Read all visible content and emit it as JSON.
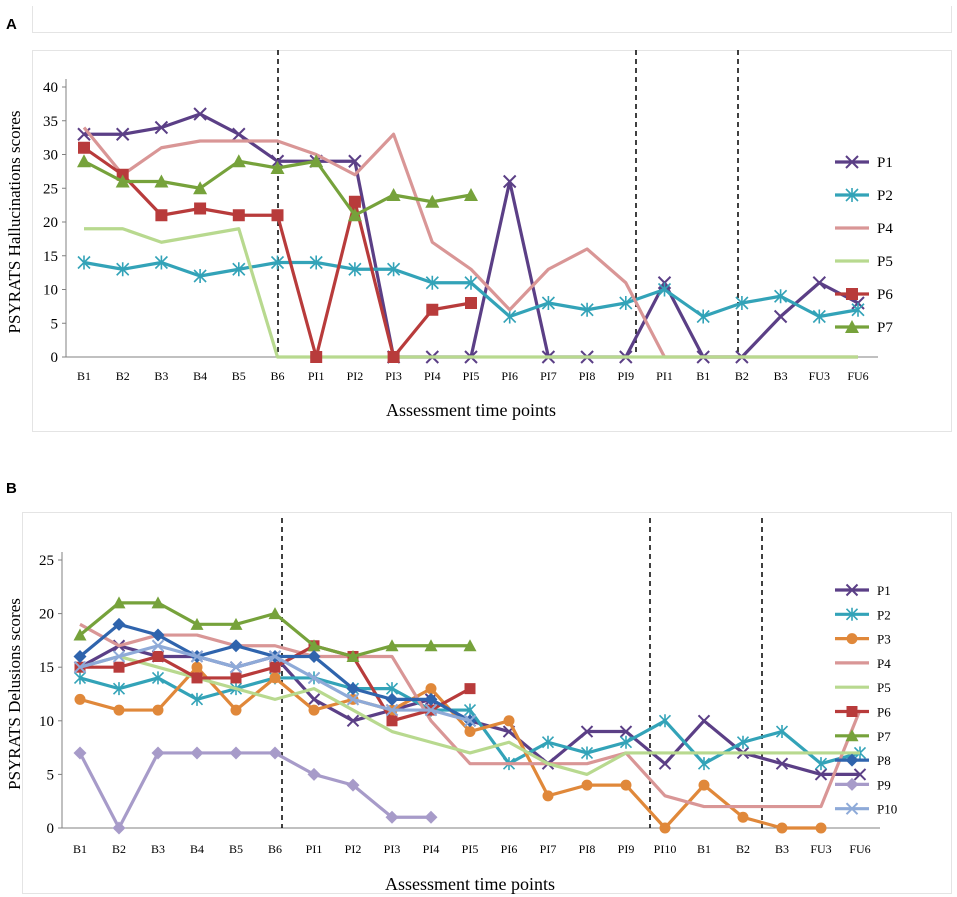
{
  "chart_data": [
    {
      "type": "line",
      "panel": "A",
      "ylabel": "PSYRATS Hallucinations scores",
      "xlabel": "Assessment time points",
      "ylim": [
        0,
        40
      ],
      "yticks": [
        "0",
        "5",
        "10",
        "15",
        "20",
        "25",
        "30",
        "35",
        "40"
      ],
      "categories": [
        "B1",
        "B2",
        "B3",
        "B4",
        "B5",
        "B6",
        "PI1",
        "PI2",
        "PI3",
        "PI4",
        "PI5",
        "PI6",
        "PI7",
        "PI8",
        "PI9",
        "PI1",
        "B1",
        "B2",
        "B3",
        "FU3",
        "FU6"
      ],
      "phase_dividers_after": [
        "B6",
        "PI1",
        "B3"
      ],
      "legend_position": "right",
      "series": [
        {
          "name": "P1",
          "color": "#5b3f86",
          "marker": "x",
          "values": [
            33,
            33,
            34,
            36,
            33,
            29,
            29,
            29,
            0,
            0,
            0,
            26,
            0,
            0,
            0,
            11,
            0,
            0,
            6,
            11,
            8
          ]
        },
        {
          "name": "P2",
          "color": "#33a3b8",
          "marker": "asterisk",
          "values": [
            14,
            13,
            14,
            12,
            13,
            14,
            14,
            13,
            13,
            11,
            11,
            6,
            8,
            7,
            8,
            10,
            6,
            8,
            9,
            6,
            7
          ]
        },
        {
          "name": "P4",
          "color": "#d99696",
          "marker": "none",
          "values": [
            34,
            27,
            31,
            32,
            32,
            32,
            30,
            27,
            33,
            17,
            13,
            7,
            13,
            16,
            11,
            0,
            0,
            0,
            0,
            0,
            0
          ]
        },
        {
          "name": "P5",
          "color": "#b8d98f",
          "marker": "none",
          "values": [
            19,
            19,
            17,
            18,
            19,
            0,
            0,
            0,
            0,
            0,
            0,
            0,
            0,
            0,
            0,
            0,
            0,
            0,
            0,
            0,
            0
          ]
        },
        {
          "name": "P6",
          "color": "#b83b3b",
          "marker": "square",
          "values": [
            31,
            27,
            21,
            22,
            21,
            21,
            0,
            23,
            0,
            7,
            8,
            null,
            null,
            null,
            null,
            null,
            null,
            null,
            null,
            null,
            null
          ]
        },
        {
          "name": "P7",
          "color": "#76a23b",
          "marker": "triangle",
          "values": [
            29,
            26,
            26,
            25,
            29,
            28,
            29,
            21,
            24,
            23,
            24,
            null,
            null,
            null,
            null,
            null,
            null,
            null,
            null,
            null,
            null
          ]
        }
      ]
    },
    {
      "type": "line",
      "panel": "B",
      "ylabel": "PSYRATS Delusions scores",
      "xlabel": "Assessment time points",
      "ylim": [
        0,
        25
      ],
      "yticks": [
        "0",
        "5",
        "10",
        "15",
        "20",
        "25"
      ],
      "categories": [
        "B1",
        "B2",
        "B3",
        "B4",
        "B5",
        "B6",
        "PI1",
        "PI2",
        "PI3",
        "PI4",
        "PI5",
        "PI6",
        "PI7",
        "PI8",
        "PI9",
        "PI10",
        "B1",
        "B2",
        "B3",
        "FU3",
        "FU6"
      ],
      "phase_dividers_after": [
        "B6",
        "PI10",
        "B3"
      ],
      "legend_position": "right",
      "series": [
        {
          "name": "P1",
          "color": "#5b3f86",
          "marker": "x",
          "values": [
            15,
            17,
            16,
            16,
            15,
            16,
            12,
            10,
            11,
            12,
            10,
            9,
            6,
            9,
            9,
            6,
            10,
            7,
            6,
            5,
            5
          ]
        },
        {
          "name": "P2",
          "color": "#33a3b8",
          "marker": "asterisk",
          "values": [
            14,
            13,
            14,
            12,
            13,
            14,
            14,
            13,
            13,
            11,
            11,
            6,
            8,
            7,
            8,
            10,
            6,
            8,
            9,
            6,
            7
          ]
        },
        {
          "name": "P3",
          "color": "#e0883a",
          "marker": "circle",
          "values": [
            12,
            11,
            11,
            15,
            11,
            14,
            11,
            12,
            11,
            13,
            9,
            10,
            3,
            4,
            4,
            0,
            4,
            1,
            0,
            0,
            null
          ]
        },
        {
          "name": "P4",
          "color": "#d99696",
          "marker": "none",
          "values": [
            19,
            17,
            18,
            18,
            17,
            17,
            16,
            16,
            16,
            10,
            6,
            6,
            6,
            6,
            7,
            3,
            2,
            2,
            2,
            2,
            11
          ]
        },
        {
          "name": "P5",
          "color": "#b8d98f",
          "marker": "none",
          "values": [
            15,
            16,
            15,
            14,
            13,
            12,
            13,
            11,
            9,
            8,
            7,
            8,
            6,
            5,
            7,
            7,
            7,
            7,
            7,
            7,
            7
          ]
        },
        {
          "name": "P6",
          "color": "#b83b3b",
          "marker": "square",
          "values": [
            15,
            15,
            16,
            14,
            14,
            15,
            17,
            16,
            10,
            11,
            13,
            null,
            null,
            null,
            null,
            null,
            null,
            null,
            null,
            null,
            null
          ]
        },
        {
          "name": "P7",
          "color": "#76a23b",
          "marker": "triangle",
          "values": [
            18,
            21,
            21,
            19,
            19,
            20,
            17,
            16,
            17,
            17,
            17,
            null,
            null,
            null,
            null,
            null,
            null,
            null,
            null,
            null,
            null
          ]
        },
        {
          "name": "P8",
          "color": "#2f64ad",
          "marker": "diamond",
          "values": [
            16,
            19,
            18,
            16,
            17,
            16,
            16,
            13,
            12,
            12,
            10,
            null,
            null,
            null,
            null,
            null,
            null,
            null,
            null,
            null,
            null
          ]
        },
        {
          "name": "P9",
          "color": "#a79bc9",
          "marker": "diamond",
          "values": [
            7,
            0,
            7,
            7,
            7,
            7,
            5,
            4,
            1,
            1,
            null,
            null,
            null,
            null,
            null,
            null,
            null,
            null,
            null,
            null,
            null
          ]
        },
        {
          "name": "P10",
          "color": "#8eaad8",
          "marker": "x",
          "values": [
            15,
            16,
            17,
            16,
            15,
            16,
            14,
            12,
            11,
            11,
            10,
            null,
            null,
            null,
            null,
            null,
            null,
            null,
            null,
            null,
            null
          ]
        }
      ]
    }
  ]
}
